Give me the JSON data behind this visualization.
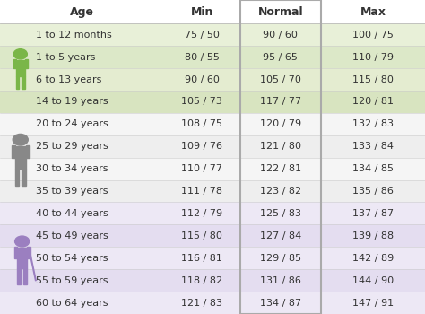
{
  "headers": [
    "Age",
    "Min",
    "Normal",
    "Max"
  ],
  "rows": [
    [
      "1 to 12 months",
      "75 / 50",
      "90 / 60",
      "100 / 75"
    ],
    [
      "1 to 5 years",
      "80 / 55",
      "95 / 65",
      "110 / 79"
    ],
    [
      "6 to 13 years",
      "90 / 60",
      "105 / 70",
      "115 / 80"
    ],
    [
      "14 to 19 years",
      "105 / 73",
      "117 / 77",
      "120 / 81"
    ],
    [
      "20 to 24 years",
      "108 / 75",
      "120 / 79",
      "132 / 83"
    ],
    [
      "25 to 29 years",
      "109 / 76",
      "121 / 80",
      "133 / 84"
    ],
    [
      "30 to 34 years",
      "110 / 77",
      "122 / 81",
      "134 / 85"
    ],
    [
      "35 to 39 years",
      "111 / 78",
      "123 / 82",
      "135 / 86"
    ],
    [
      "40 to 44 years",
      "112 / 79",
      "125 / 83",
      "137 / 87"
    ],
    [
      "45 to 49 years",
      "115 / 80",
      "127 / 84",
      "139 / 88"
    ],
    [
      "50 to 54 years",
      "116 / 81",
      "129 / 85",
      "142 / 89"
    ],
    [
      "55 to 59 years",
      "118 / 82",
      "131 / 86",
      "144 / 90"
    ],
    [
      "60 to 64 years",
      "121 / 83",
      "134 / 87",
      "147 / 91"
    ]
  ],
  "row_bg_colors": [
    "#e8f0d8",
    "#dce8c8",
    "#e4ecd0",
    "#d8e4c0",
    "#f5f5f5",
    "#eeeeee",
    "#f5f5f5",
    "#eeeeee",
    "#ede8f5",
    "#e4ddf0",
    "#ede8f5",
    "#e4ddf0",
    "#ede8f5"
  ],
  "header_bg": "#ffffff",
  "normal_col_border": "#aaaaaa",
  "header_font_size": 9,
  "cell_font_size": 8,
  "figure_bg": "#ffffff",
  "child_icon_color": "#7ab648",
  "adult_icon_color": "#888888",
  "elder_icon_color": "#9b7fc0",
  "child_rows": [
    0,
    1,
    2,
    3
  ],
  "adult_rows": [
    4,
    5,
    6,
    7
  ],
  "elder_rows": [
    8,
    9,
    10,
    11,
    12
  ]
}
